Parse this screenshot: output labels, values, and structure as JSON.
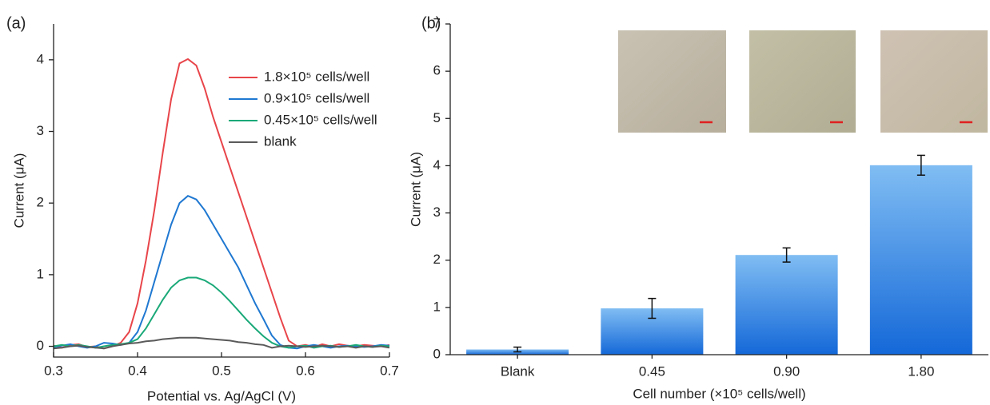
{
  "chart_data": [
    {
      "type": "line",
      "label": "(a)",
      "xlabel": "Potential vs. Ag/AgCl (V)",
      "ylabel": "Current (μA)",
      "x": [
        0.3,
        0.31,
        0.32,
        0.33,
        0.34,
        0.35,
        0.36,
        0.37,
        0.38,
        0.39,
        0.4,
        0.41,
        0.42,
        0.43,
        0.44,
        0.45,
        0.46,
        0.47,
        0.48,
        0.49,
        0.5,
        0.51,
        0.52,
        0.53,
        0.54,
        0.55,
        0.56,
        0.57,
        0.58,
        0.59,
        0.6,
        0.61,
        0.62,
        0.63,
        0.64,
        0.65,
        0.66,
        0.67,
        0.68,
        0.69,
        0.7
      ],
      "series": [
        {
          "name": "1.8×10⁵ cells/well",
          "color": "#e8454a",
          "values": [
            0.01,
            -0.02,
            0.02,
            0.03,
            -0.01,
            0.0,
            -0.03,
            0.0,
            0.05,
            0.2,
            0.6,
            1.2,
            1.9,
            2.7,
            3.45,
            3.95,
            4.01,
            3.92,
            3.6,
            3.2,
            2.85,
            2.5,
            2.15,
            1.8,
            1.45,
            1.1,
            0.75,
            0.4,
            0.08,
            0.0,
            0.02,
            -0.01,
            0.03,
            0.0,
            0.03,
            0.01,
            0.0,
            0.02,
            0.01,
            0.0,
            0.02
          ]
        },
        {
          "name": "0.9×10⁵ cells/well",
          "color": "#1f78d1",
          "values": [
            -0.01,
            0.01,
            0.03,
            0.0,
            -0.02,
            0.0,
            0.05,
            0.04,
            0.02,
            0.05,
            0.2,
            0.5,
            0.9,
            1.3,
            1.7,
            2.0,
            2.1,
            2.05,
            1.9,
            1.7,
            1.5,
            1.3,
            1.1,
            0.85,
            0.6,
            0.38,
            0.15,
            0.02,
            -0.02,
            -0.03,
            0.0,
            0.02,
            0.0,
            -0.02,
            0.0,
            0.01,
            0.0,
            -0.01,
            0.0,
            0.02,
            0.01
          ]
        },
        {
          "name": "0.45×10⁵ cells/well",
          "color": "#1aa978",
          "values": [
            0.0,
            0.02,
            0.0,
            0.02,
            0.0,
            -0.02,
            0.0,
            0.02,
            0.03,
            0.05,
            0.1,
            0.25,
            0.45,
            0.65,
            0.82,
            0.92,
            0.96,
            0.96,
            0.92,
            0.85,
            0.75,
            0.63,
            0.5,
            0.37,
            0.25,
            0.14,
            0.05,
            0.0,
            -0.02,
            0.0,
            0.01,
            -0.02,
            0.0,
            0.01,
            -0.01,
            0.0,
            0.02,
            0.0,
            -0.01,
            0.01,
            0.0
          ]
        },
        {
          "name": "blank",
          "color": "#5a5a5a",
          "values": [
            -0.03,
            -0.02,
            0.0,
            0.01,
            -0.01,
            -0.02,
            -0.03,
            0.0,
            0.02,
            0.04,
            0.05,
            0.07,
            0.08,
            0.1,
            0.11,
            0.12,
            0.12,
            0.12,
            0.11,
            0.1,
            0.09,
            0.08,
            0.06,
            0.05,
            0.03,
            0.02,
            -0.02,
            0.0,
            0.01,
            0.0,
            -0.01,
            0.0,
            0.01,
            0.0,
            -0.01,
            0.0,
            -0.02,
            0.0,
            -0.01,
            0.0,
            -0.02
          ]
        }
      ],
      "xlim": [
        0.3,
        0.7
      ],
      "xticks": [
        0.3,
        0.4,
        0.5,
        0.6,
        0.7
      ],
      "ylim": [
        -0.15,
        4.5
      ],
      "yticks": [
        0,
        1,
        2,
        3,
        4
      ],
      "legend": "upper-right"
    },
    {
      "type": "bar",
      "label": "(b)",
      "xlabel": "Cell number (×10⁵ cells/well)",
      "ylabel": "Current (μA)",
      "categories": [
        "Blank",
        "0.45",
        "0.90",
        "1.80"
      ],
      "values": [
        0.11,
        0.98,
        2.11,
        4.01
      ],
      "errors": [
        0.05,
        0.21,
        0.15,
        0.21
      ],
      "color": "#3a8ae6",
      "ylim": [
        0,
        7
      ],
      "yticks": [
        0,
        1,
        2,
        3,
        4,
        5,
        6,
        7
      ]
    }
  ]
}
